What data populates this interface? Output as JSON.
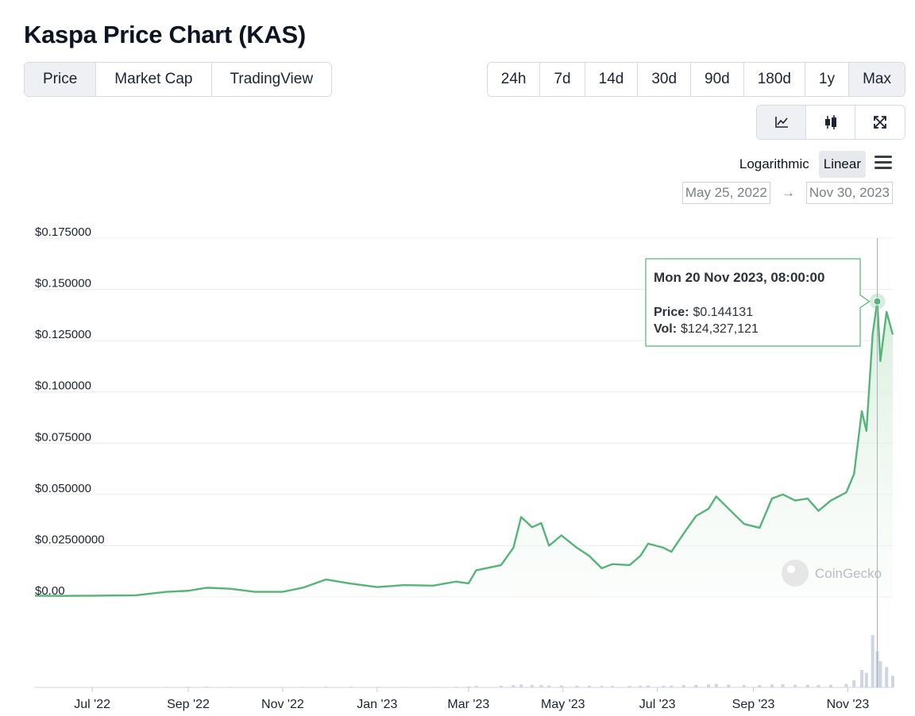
{
  "title": "Kaspa Price Chart (KAS)",
  "tabs": [
    "Price",
    "Market Cap",
    "TradingView"
  ],
  "ranges": [
    "24h",
    "7d",
    "14d",
    "30d",
    "90d",
    "180d",
    "1y",
    "Max"
  ],
  "scale_options": [
    "Logarithmic",
    "Linear"
  ],
  "date_range": {
    "from": "May 25, 2022",
    "separator": "→",
    "to": "Nov 30, 2023"
  },
  "watermark": "CoinGecko",
  "chart_data": {
    "type": "line",
    "x": [
      "2022-05-25",
      "2022-06-12",
      "2022-07-01",
      "2022-07-29",
      "2022-08-18",
      "2022-09-01",
      "2022-09-13",
      "2022-09-28",
      "2022-10-14",
      "2022-11-01",
      "2022-11-14",
      "2022-11-29",
      "2022-12-15",
      "2023-01-01",
      "2023-01-19",
      "2023-02-06",
      "2023-02-21",
      "2023-03-01",
      "2023-03-06",
      "2023-03-22",
      "2023-03-30",
      "2023-04-04",
      "2023-04-11",
      "2023-04-17",
      "2023-04-22",
      "2023-04-30",
      "2023-05-10",
      "2023-05-18",
      "2023-05-26",
      "2023-06-02",
      "2023-06-13",
      "2023-06-20",
      "2023-06-25",
      "2023-07-05",
      "2023-07-10",
      "2023-07-18",
      "2023-07-26",
      "2023-08-03",
      "2023-08-08",
      "2023-08-16",
      "2023-08-26",
      "2023-09-05",
      "2023-09-13",
      "2023-09-20",
      "2023-09-28",
      "2023-10-06",
      "2023-10-13",
      "2023-10-21",
      "2023-10-31",
      "2023-11-05",
      "2023-11-10",
      "2023-11-13",
      "2023-11-17",
      "2023-11-20",
      "2023-11-22",
      "2023-11-26",
      "2023-11-30"
    ],
    "series": [
      {
        "color": "#56b37a",
        "values": [
          0.0006,
          0.0005,
          0.0006,
          0.0008,
          0.0025,
          0.003,
          0.0045,
          0.004,
          0.0025,
          0.0025,
          0.0045,
          0.0085,
          0.0065,
          0.0048,
          0.0058,
          0.0055,
          0.0075,
          0.0066,
          0.013,
          0.0155,
          0.024,
          0.039,
          0.034,
          0.036,
          0.025,
          0.03,
          0.024,
          0.02,
          0.014,
          0.016,
          0.0155,
          0.02,
          0.026,
          0.024,
          0.022,
          0.031,
          0.0395,
          0.043,
          0.049,
          0.043,
          0.0356,
          0.0337,
          0.048,
          0.05,
          0.047,
          0.048,
          0.042,
          0.047,
          0.051,
          0.06,
          0.0906,
          0.081,
          0.128,
          0.144131,
          0.115,
          0.139,
          0.128
        ]
      },
      {
        "color": "#cdd6e1",
        "axis": "y2",
        "values": [
          1000000,
          1000000,
          1500000,
          1500000,
          2000000,
          2000000,
          2500000,
          2000000,
          1500000,
          1500000,
          2000000,
          3000000,
          2500000,
          2000000,
          2000000,
          2000000,
          2500000,
          3000000,
          5000000,
          6000000,
          8000000,
          10000000,
          9000000,
          8000000,
          7000000,
          7000000,
          6000000,
          6000000,
          5000000,
          5000000,
          5000000,
          6000000,
          7000000,
          6000000,
          6000000,
          8000000,
          9000000,
          10000000,
          12000000,
          10000000,
          8000000,
          8000000,
          10000000,
          11000000,
          9000000,
          9000000,
          8000000,
          9000000,
          12000000,
          25000000,
          60000000,
          50000000,
          180000000,
          124327121,
          90000000,
          70000000,
          40000000
        ]
      }
    ],
    "xlim": [
      "2022-05-25",
      "2023-11-30"
    ],
    "xticks": [
      {
        "value": "2022-07-01",
        "label": "Jul '22"
      },
      {
        "value": "2022-09-01",
        "label": "Sep '22"
      },
      {
        "value": "2022-11-01",
        "label": "Nov '22"
      },
      {
        "value": "2023-01-01",
        "label": "Jan '23"
      },
      {
        "value": "2023-03-01",
        "label": "Mar '23"
      },
      {
        "value": "2023-05-01",
        "label": "May '23"
      },
      {
        "value": "2023-07-01",
        "label": "Jul '23"
      },
      {
        "value": "2023-09-01",
        "label": "Sep '23"
      },
      {
        "value": "2023-11-01",
        "label": "Nov '23"
      }
    ],
    "ylim": [
      0,
      0.175
    ],
    "yticks": [
      {
        "value": 0.175,
        "label": "$0.175000"
      },
      {
        "value": 0.15,
        "label": "$0.150000"
      },
      {
        "value": 0.125,
        "label": "$0.125000"
      },
      {
        "value": 0.1,
        "label": "$0.100000"
      },
      {
        "value": 0.075,
        "label": "$0.075000"
      },
      {
        "value": 0.05,
        "label": "$0.050000"
      },
      {
        "value": 0.025,
        "label": "$0.02500000"
      },
      {
        "value": 0,
        "label": "$0.00"
      }
    ],
    "y2lim": [
      0,
      300000000
    ],
    "grid": true,
    "tooltip": {
      "date": "Mon 20 Nov 2023, 08:00:00",
      "price_label": "Price:",
      "price": "$0.144131",
      "vol_label": "Vol:",
      "vol": "$124,327,121"
    }
  }
}
